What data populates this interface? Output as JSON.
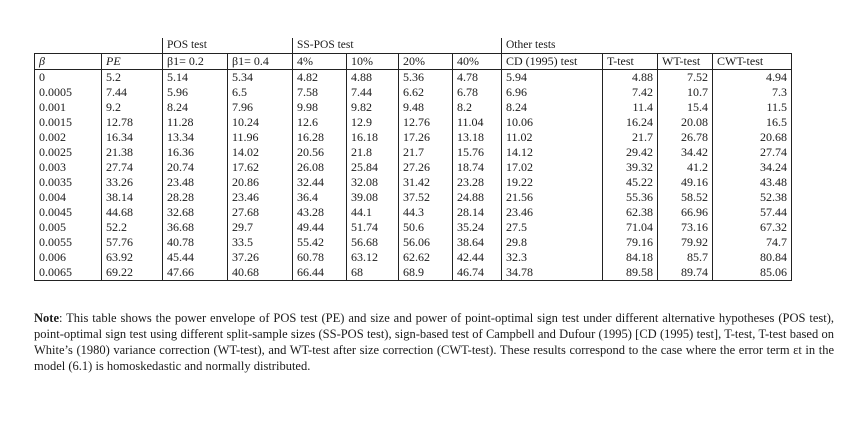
{
  "table": {
    "groups": {
      "pos": "POS test",
      "sspos": "SS-POS test",
      "other": "Other tests"
    },
    "headers": {
      "beta": "β",
      "pe": "PE",
      "pos1": "β1= 0.2",
      "pos2": "β1= 0.4",
      "ss1": "4%",
      "ss2": "10%",
      "ss3": "20%",
      "ss4": "40%",
      "cd": "CD (1995) test",
      "t": "T-test",
      "wt": "WT-test",
      "cwt": "CWT-test"
    },
    "rows": [
      [
        "0",
        "5.2",
        "5.14",
        "5.34",
        "4.82",
        "4.88",
        "5.36",
        "4.78",
        "5.94",
        "4.88",
        "7.52",
        "4.94"
      ],
      [
        "0.0005",
        "7.44",
        "5.96",
        "6.5",
        "7.58",
        "7.44",
        "6.62",
        "6.78",
        "6.96",
        "7.42",
        "10.7",
        "7.3"
      ],
      [
        "0.001",
        "9.2",
        "8.24",
        "7.96",
        "9.98",
        "9.82",
        "9.48",
        "8.2",
        "8.24",
        "11.4",
        "15.4",
        "11.5"
      ],
      [
        "0.0015",
        "12.78",
        "11.28",
        "10.24",
        "12.6",
        "12.9",
        "12.76",
        "11.04",
        "10.06",
        "16.24",
        "20.08",
        "16.5"
      ],
      [
        "0.002",
        "16.34",
        "13.34",
        "11.96",
        "16.28",
        "16.18",
        "17.26",
        "13.18",
        "11.02",
        "21.7",
        "26.78",
        "20.68"
      ],
      [
        "0.0025",
        "21.38",
        "16.36",
        "14.02",
        "20.56",
        "21.8",
        "21.7",
        "15.76",
        "14.12",
        "29.42",
        "34.42",
        "27.74"
      ],
      [
        "0.003",
        "27.74",
        "20.74",
        "17.62",
        "26.08",
        "25.84",
        "27.26",
        "18.74",
        "17.02",
        "39.32",
        "41.2",
        "34.24"
      ],
      [
        "0.0035",
        "33.26",
        "23.48",
        "20.86",
        "32.44",
        "32.08",
        "31.42",
        "23.28",
        "19.22",
        "45.22",
        "49.16",
        "43.48"
      ],
      [
        "0.004",
        "38.14",
        "28.28",
        "23.46",
        "36.4",
        "39.08",
        "37.52",
        "24.88",
        "21.56",
        "55.36",
        "58.52",
        "52.38"
      ],
      [
        "0.0045",
        "44.68",
        "32.68",
        "27.68",
        "43.28",
        "44.1",
        "44.3",
        "28.14",
        "23.46",
        "62.38",
        "66.96",
        "57.44"
      ],
      [
        "0.005",
        "52.2",
        "36.68",
        "29.7",
        "49.44",
        "51.74",
        "50.6",
        "35.24",
        "27.5",
        "71.04",
        "73.16",
        "67.32"
      ],
      [
        "0.0055",
        "57.76",
        "40.78",
        "33.5",
        "55.42",
        "56.68",
        "56.06",
        "38.64",
        "29.8",
        "79.16",
        "79.92",
        "74.7"
      ],
      [
        "0.006",
        "63.92",
        "45.44",
        "37.26",
        "60.78",
        "63.12",
        "62.62",
        "42.44",
        "32.3",
        "84.18",
        "85.7",
        "80.84"
      ],
      [
        "0.0065",
        "69.22",
        "47.66",
        "40.68",
        "66.44",
        "68",
        "68.9",
        "46.74",
        "34.78",
        "89.58",
        "89.74",
        "85.06"
      ]
    ]
  },
  "note": {
    "label": "Note",
    "text": ": This table shows the power envelope of POS test (PE) and size and power of point-optimal sign test under different alternative hypotheses (POS test), point-optimal sign test using different split-sample sizes (SS-POS test), sign-based test of Campbell and Dufour (1995) [CD (1995) test], T-test, T-test based on White’s (1980) variance correction (WT-test), and WT-test after size correction (CWT-test). These results correspond to the case where the error term εt in the model (6.1) is homoskedastic and normally distributed."
  }
}
